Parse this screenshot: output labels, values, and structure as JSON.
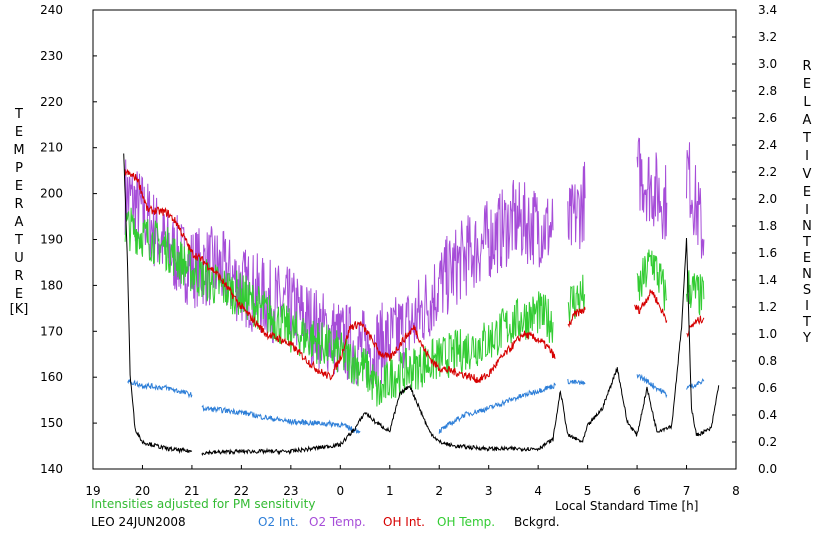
{
  "chart_data": {
    "type": "line",
    "left_axis": {
      "label_letters": [
        "T",
        "E",
        "M",
        "P",
        "E",
        "R",
        "A",
        "T",
        "U",
        "R",
        "E"
      ],
      "unit": "[K]",
      "ylim": [
        140,
        240
      ],
      "ticks": [
        140,
        150,
        160,
        170,
        180,
        190,
        200,
        210,
        220,
        230,
        240
      ]
    },
    "right_axis": {
      "label1_letters": [
        "R",
        "E",
        "L",
        "A",
        "T",
        "I",
        "V",
        "E"
      ],
      "label2_letters": [
        "I",
        "N",
        "T",
        "E",
        "N",
        "S",
        "I",
        "T",
        "Y"
      ],
      "ylim": [
        0,
        3.4
      ],
      "ticks": [
        "0.0",
        "0.2",
        "0.4",
        "0.6",
        "0.8",
        "1.0",
        "1.2",
        "1.4",
        "1.6",
        "1.8",
        "2.0",
        "2.2",
        "2.4",
        "2.6",
        "2.8",
        "3.0",
        "3.2",
        "3.4"
      ]
    },
    "x_axis": {
      "label": "Local Standard Time [h]",
      "xlim": [
        19,
        32
      ],
      "tick_labels": [
        "19",
        "20",
        "21",
        "22",
        "23",
        "0",
        "1",
        "2",
        "3",
        "4",
        "5",
        "6",
        "7",
        "8"
      ]
    },
    "note": "Intensities adjusted for PM sensitivity",
    "footer_left": "LEO 24JUN2008",
    "legend": [
      "O2 Int.",
      "O2 Temp.",
      "OH Int.",
      "OH Temp.",
      "Bckgrd."
    ],
    "colors": {
      "o2_int": "#2e7fd8",
      "o2_temp": "#a64dd8",
      "oh_int": "#d60000",
      "oh_temp": "#33cc33",
      "bckgrd": "#000000",
      "note": "#33bb33"
    },
    "series": [
      {
        "name": "O2 Temp.",
        "axis": "left",
        "segments": [
          [
            [
              19.65,
              200
            ],
            [
              20.0,
              196
            ],
            [
              20.5,
              188
            ],
            [
              21.0,
              184
            ],
            [
              21.5,
              184
            ],
            [
              22.0,
              180
            ],
            [
              22.5,
              177
            ],
            [
              23.0,
              175
            ],
            [
              23.5,
              171
            ],
            [
              24.0,
              168
            ],
            [
              24.5,
              166
            ],
            [
              25.0,
              168
            ],
            [
              25.5,
              172
            ],
            [
              26.0,
              180
            ],
            [
              26.5,
              186
            ],
            [
              27.0,
              190
            ],
            [
              27.5,
              194
            ],
            [
              28.0,
              193
            ],
            [
              28.3,
              192
            ]
          ],
          [
            [
              28.6,
              192
            ],
            [
              28.95,
              199
            ]
          ],
          [
            [
              30.0,
              205
            ],
            [
              30.6,
              198
            ]
          ],
          [
            [
              31.0,
              206
            ],
            [
              31.35,
              190
            ]
          ]
        ]
      },
      {
        "name": "OH Temp.",
        "axis": "left",
        "segments": [
          [
            [
              19.65,
              193
            ],
            [
              20.0,
              191
            ],
            [
              20.5,
              188
            ],
            [
              21.0,
              183
            ],
            [
              21.5,
              180
            ],
            [
              22.0,
              178
            ],
            [
              22.5,
              174
            ],
            [
              23.0,
              170
            ],
            [
              23.5,
              168
            ],
            [
              24.0,
              165
            ],
            [
              24.5,
              162
            ],
            [
              24.8,
              156
            ],
            [
              25.0,
              160
            ],
            [
              25.5,
              162
            ],
            [
              26.0,
              164
            ],
            [
              26.5,
              166
            ],
            [
              27.0,
              168
            ],
            [
              27.5,
              172
            ],
            [
              28.0,
              174
            ],
            [
              28.3,
              172
            ]
          ],
          [
            [
              28.6,
              176
            ],
            [
              28.95,
              178
            ]
          ],
          [
            [
              30.0,
              178
            ],
            [
              30.3,
              186
            ],
            [
              30.6,
              177
            ]
          ],
          [
            [
              31.0,
              180
            ],
            [
              31.35,
              177
            ]
          ]
        ]
      },
      {
        "name": "OH Int.",
        "axis": "right",
        "segments": [
          [
            [
              19.65,
              2.2
            ],
            [
              19.9,
              2.15
            ],
            [
              20.1,
              1.92
            ],
            [
              20.5,
              1.9
            ],
            [
              20.7,
              1.82
            ],
            [
              21.0,
              1.6
            ],
            [
              21.2,
              1.55
            ],
            [
              21.5,
              1.45
            ],
            [
              21.8,
              1.3
            ],
            [
              22.0,
              1.2
            ],
            [
              22.3,
              1.08
            ],
            [
              22.5,
              1.0
            ],
            [
              22.8,
              0.96
            ],
            [
              23.0,
              0.92
            ],
            [
              23.2,
              0.85
            ],
            [
              23.4,
              0.78
            ],
            [
              23.6,
              0.72
            ],
            [
              23.8,
              0.68
            ],
            [
              24.0,
              0.82
            ],
            [
              24.2,
              1.05
            ],
            [
              24.4,
              1.08
            ],
            [
              24.6,
              0.98
            ],
            [
              24.8,
              0.86
            ],
            [
              25.0,
              0.82
            ],
            [
              25.3,
              0.97
            ],
            [
              25.5,
              1.05
            ],
            [
              25.7,
              0.88
            ],
            [
              25.9,
              0.78
            ],
            [
              26.0,
              0.75
            ],
            [
              26.3,
              0.72
            ],
            [
              26.5,
              0.7
            ],
            [
              26.8,
              0.66
            ],
            [
              27.0,
              0.7
            ],
            [
              27.2,
              0.8
            ],
            [
              27.5,
              0.92
            ],
            [
              27.7,
              1.0
            ],
            [
              28.0,
              0.96
            ],
            [
              28.2,
              0.9
            ],
            [
              28.35,
              0.82
            ]
          ],
          [
            [
              28.6,
              1.05
            ],
            [
              28.75,
              1.15
            ],
            [
              28.95,
              1.18
            ]
          ],
          [
            [
              29.95,
              1.2
            ],
            [
              30.05,
              1.18
            ],
            [
              30.3,
              1.32
            ],
            [
              30.6,
              1.1
            ]
          ],
          [
            [
              31.0,
              1.0
            ],
            [
              31.15,
              1.08
            ],
            [
              31.35,
              1.12
            ]
          ]
        ]
      },
      {
        "name": "O2 Int.",
        "axis": "right",
        "segments": [
          [
            [
              19.7,
              0.65
            ],
            [
              20.0,
              0.62
            ],
            [
              20.5,
              0.6
            ],
            [
              21.0,
              0.55
            ]
          ],
          [
            [
              21.2,
              0.45
            ],
            [
              21.5,
              0.44
            ],
            [
              22.0,
              0.42
            ],
            [
              22.5,
              0.38
            ],
            [
              23.0,
              0.35
            ],
            [
              23.5,
              0.34
            ],
            [
              24.0,
              0.33
            ],
            [
              24.2,
              0.3
            ],
            [
              24.4,
              0.28
            ]
          ],
          [
            [
              26.0,
              0.28
            ],
            [
              26.5,
              0.4
            ],
            [
              27.0,
              0.45
            ],
            [
              27.5,
              0.52
            ],
            [
              28.0,
              0.58
            ],
            [
              28.35,
              0.62
            ]
          ],
          [
            [
              28.6,
              0.65
            ],
            [
              28.95,
              0.63
            ]
          ],
          [
            [
              30.0,
              0.7
            ],
            [
              30.6,
              0.55
            ]
          ],
          [
            [
              31.0,
              0.6
            ],
            [
              31.35,
              0.65
            ]
          ]
        ]
      },
      {
        "name": "Bckgrd.",
        "axis": "right",
        "segments": [
          [
            [
              19.62,
              2.35
            ],
            [
              19.7,
              1.5
            ],
            [
              19.75,
              0.7
            ],
            [
              19.85,
              0.3
            ],
            [
              20.0,
              0.2
            ],
            [
              20.5,
              0.15
            ],
            [
              21.0,
              0.13
            ]
          ],
          [
            [
              21.2,
              0.12
            ],
            [
              22.0,
              0.13
            ],
            [
              23.0,
              0.13
            ],
            [
              24.0,
              0.18
            ],
            [
              24.3,
              0.3
            ],
            [
              24.5,
              0.42
            ],
            [
              24.7,
              0.35
            ],
            [
              25.0,
              0.28
            ],
            [
              25.2,
              0.55
            ],
            [
              25.4,
              0.62
            ],
            [
              25.6,
              0.45
            ],
            [
              25.8,
              0.28
            ],
            [
              26.0,
              0.2
            ],
            [
              26.3,
              0.17
            ],
            [
              27.0,
              0.15
            ],
            [
              28.0,
              0.15
            ],
            [
              28.3,
              0.22
            ],
            [
              28.45,
              0.58
            ],
            [
              28.6,
              0.25
            ],
            [
              28.9,
              0.2
            ],
            [
              29.0,
              0.32
            ],
            [
              29.3,
              0.45
            ],
            [
              29.6,
              0.75
            ],
            [
              29.8,
              0.35
            ],
            [
              30.0,
              0.25
            ],
            [
              30.2,
              0.6
            ],
            [
              30.4,
              0.28
            ],
            [
              30.7,
              0.32
            ],
            [
              30.9,
              1.05
            ],
            [
              31.0,
              1.7
            ],
            [
              31.1,
              0.45
            ],
            [
              31.2,
              0.25
            ],
            [
              31.5,
              0.3
            ],
            [
              31.65,
              0.62
            ]
          ]
        ]
      }
    ]
  }
}
